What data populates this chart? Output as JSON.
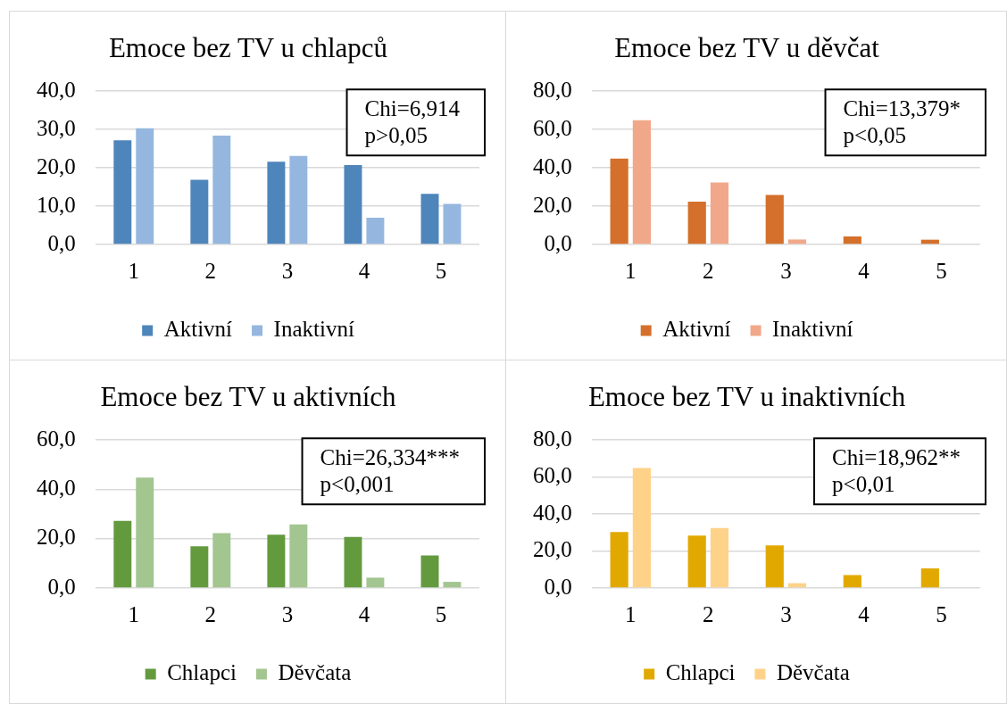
{
  "chart_data": [
    {
      "type": "bar",
      "title": "Emoce bez TV u chlapců",
      "categories": [
        "1",
        "2",
        "3",
        "4",
        "5"
      ],
      "series": [
        {
          "name": "Aktivní",
          "color": "#4e85bb",
          "values": [
            27.2,
            16.9,
            21.6,
            20.7,
            13.2
          ]
        },
        {
          "name": "Inaktivní",
          "color": "#95b7df",
          "values": [
            30.3,
            28.4,
            23.1,
            7.0,
            10.6
          ]
        }
      ],
      "ylim": [
        0,
        40
      ],
      "yticks": [
        {
          "value": 0,
          "label": "0,0"
        },
        {
          "value": 10,
          "label": "10,0"
        },
        {
          "value": 20,
          "label": "20,0"
        },
        {
          "value": 30,
          "label": "30,0"
        },
        {
          "value": 40,
          "label": "40,0"
        }
      ],
      "grid": "y",
      "legend": "bottom",
      "annotations": [
        "Chi=6,914",
        "p>0,05"
      ]
    },
    {
      "type": "bar",
      "title": "Emoce bez TV u děvčat",
      "categories": [
        "1",
        "2",
        "3",
        "4",
        "5"
      ],
      "series": [
        {
          "name": "Aktivní",
          "color": "#d4702b",
          "values": [
            44.8,
            22.3,
            25.8,
            4.2,
            2.5
          ]
        },
        {
          "name": "Inaktivní",
          "color": "#f1a88a",
          "values": [
            64.9,
            32.4,
            2.6,
            0,
            0
          ]
        }
      ],
      "ylim": [
        0,
        80
      ],
      "yticks": [
        {
          "value": 0,
          "label": "0,0"
        },
        {
          "value": 20,
          "label": "20,0"
        },
        {
          "value": 40,
          "label": "40,0"
        },
        {
          "value": 60,
          "label": "60,0"
        },
        {
          "value": 80,
          "label": "80,0"
        }
      ],
      "grid": "y",
      "legend": "bottom",
      "annotations": [
        "Chi=13,379*",
        "p<0,05"
      ]
    },
    {
      "type": "bar",
      "title": "Emoce bez TV u aktivních",
      "categories": [
        "1",
        "2",
        "3",
        "4",
        "5"
      ],
      "series": [
        {
          "name": "Chlapci",
          "color": "#639a3e",
          "values": [
            27.2,
            16.9,
            21.6,
            20.7,
            13.2
          ]
        },
        {
          "name": "Děvčata",
          "color": "#a3c590",
          "values": [
            44.8,
            22.3,
            25.8,
            4.2,
            2.5
          ]
        }
      ],
      "ylim": [
        0,
        60
      ],
      "yticks": [
        {
          "value": 0,
          "label": "0,0"
        },
        {
          "value": 20,
          "label": "20,0"
        },
        {
          "value": 40,
          "label": "40,0"
        },
        {
          "value": 60,
          "label": "60,0"
        }
      ],
      "grid": "y",
      "legend": "bottom",
      "annotations": [
        "Chi=26,334***",
        "p<0,001"
      ]
    },
    {
      "type": "bar",
      "title": "Emoce bez TV u inaktivních",
      "categories": [
        "1",
        "2",
        "3",
        "4",
        "5"
      ],
      "series": [
        {
          "name": "Chlapci",
          "color": "#e1a900",
          "values": [
            30.3,
            28.4,
            23.1,
            7.0,
            10.6
          ]
        },
        {
          "name": "Děvčata",
          "color": "#ffd28a",
          "values": [
            64.9,
            32.4,
            2.6,
            0,
            0
          ]
        }
      ],
      "ylim": [
        0,
        80
      ],
      "yticks": [
        {
          "value": 0,
          "label": "0,0"
        },
        {
          "value": 20,
          "label": "20,0"
        },
        {
          "value": 40,
          "label": "40,0"
        },
        {
          "value": 60,
          "label": "60,0"
        },
        {
          "value": 80,
          "label": "80,0"
        }
      ],
      "grid": "y",
      "legend": "bottom",
      "annotations": [
        "Chi=18,962**",
        "p<0,01"
      ]
    }
  ]
}
